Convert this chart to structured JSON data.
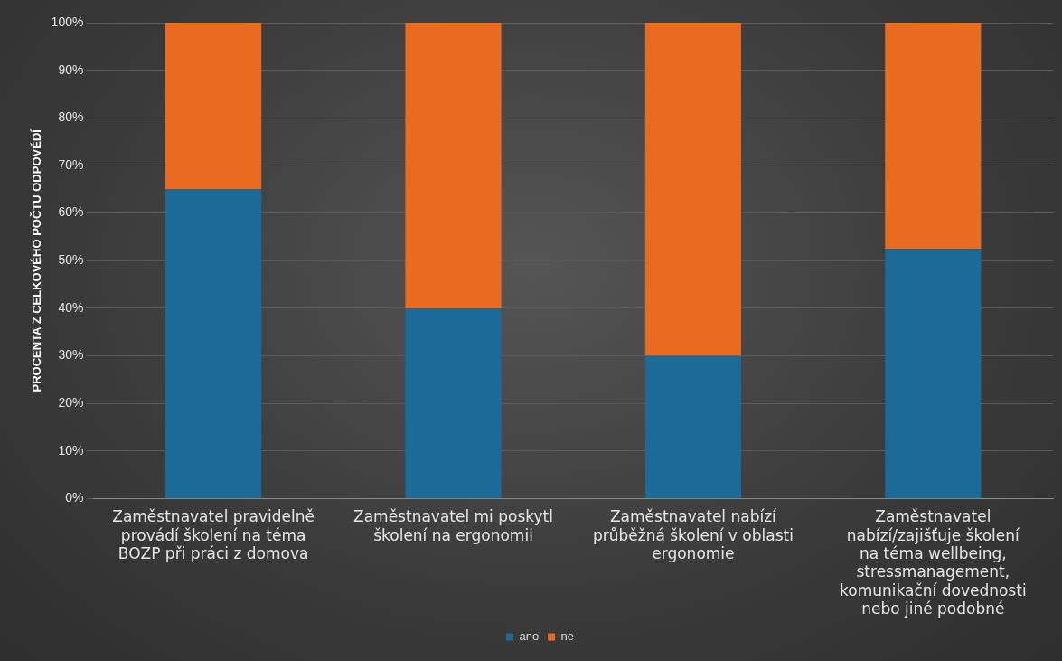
{
  "chart_data": {
    "type": "bar",
    "stacked": true,
    "ylabel": "PROCENTA Z CELKOVÉHO POČTU ODPOVĚDÍ",
    "categories": [
      "Zaměstnavatel pravidelně provádí školení na téma BOZP při práci z domova",
      "Zaměstnavatel mi poskytl školení na ergonomii",
      "Zaměstnavatel nabízí průběžná školení v oblasti ergonomie",
      "Zaměstnavatel nabízí/zajišťuje školení na téma wellbeing, stressmanagement, komunikační dovednosti nebo jiné podobné"
    ],
    "series": [
      {
        "name": "ano",
        "color": "#1b6a98",
        "values": [
          65,
          40,
          30,
          52.5
        ]
      },
      {
        "name": "ne",
        "color": "#ea6b20",
        "values": [
          35,
          60,
          70,
          47.5
        ]
      }
    ],
    "ylim": [
      0,
      100
    ],
    "yticks": [
      {
        "value": 0,
        "label": "0%"
      },
      {
        "value": 10,
        "label": "10%"
      },
      {
        "value": 20,
        "label": "20%"
      },
      {
        "value": 30,
        "label": "30%"
      },
      {
        "value": 40,
        "label": "40%"
      },
      {
        "value": 50,
        "label": "50%"
      },
      {
        "value": 60,
        "label": "60%"
      },
      {
        "value": 70,
        "label": "70%"
      },
      {
        "value": 80,
        "label": "80%"
      },
      {
        "value": 90,
        "label": "90%"
      },
      {
        "value": 100,
        "label": "100%"
      }
    ],
    "grid": "y",
    "legend": "bottom"
  }
}
